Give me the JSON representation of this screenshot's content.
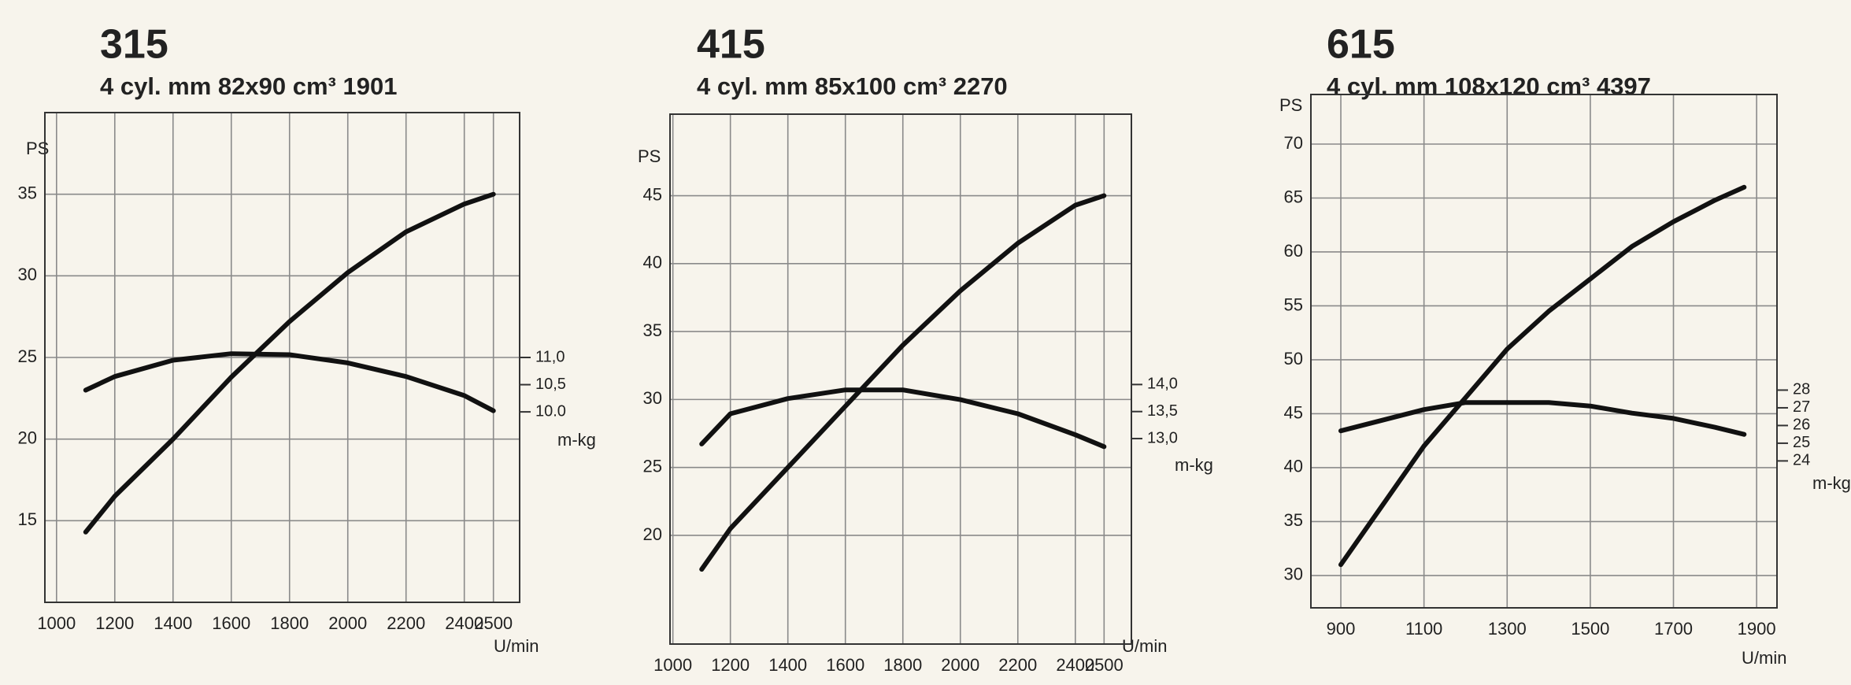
{
  "chart_data": [
    {
      "type": "line",
      "title": "315",
      "subtitle": "4 cyl.  mm 82x90  cm³ 1901",
      "y_label": "PS",
      "x_label": "U/min",
      "y2_label": "m-kg",
      "x": [
        1100,
        1200,
        1400,
        1600,
        1800,
        2000,
        2200,
        2400,
        2500
      ],
      "series": [
        {
          "color": "#111111",
          "values": [
            14.3,
            16.5,
            20,
            23.8,
            27.2,
            30.2,
            32.7,
            34.4,
            35
          ]
        },
        {
          "color": "#111111",
          "axis": "y2",
          "values": [
            10.4,
            10.65,
            10.95,
            11.07,
            11.05,
            10.9,
            10.65,
            10.3,
            10.02
          ]
        }
      ],
      "xlim": [
        960,
        2590
      ],
      "xticks": [
        1000,
        1200,
        1400,
        1600,
        1800,
        2000,
        2200,
        2400,
        2500
      ],
      "ylim": [
        10,
        40
      ],
      "yticks": [
        15,
        20,
        25,
        30,
        35
      ],
      "y2lim": [
        6.5,
        15.5
      ],
      "y2ticks": [
        {
          "value": 11,
          "label": "11,0"
        },
        {
          "value": 10.5,
          "label": "10,5"
        },
        {
          "value": 10,
          "label": "10.0"
        }
      ],
      "grid": true
    },
    {
      "type": "line",
      "title": "415",
      "subtitle": "4 cyl.  mm 85x100  cm³ 2270",
      "y_label": "PS",
      "x_label": "U/min",
      "y2_label": "m-kg",
      "x": [
        1100,
        1200,
        1400,
        1600,
        1800,
        2000,
        2200,
        2400,
        2500
      ],
      "series": [
        {
          "color": "#111111",
          "values": [
            17.5,
            20.5,
            25,
            29.5,
            34,
            38,
            41.5,
            44.3,
            45
          ]
        },
        {
          "color": "#111111",
          "axis": "y2",
          "values": [
            12.9,
            13.46,
            13.74,
            13.9,
            13.9,
            13.72,
            13.46,
            13.07,
            12.85
          ]
        }
      ],
      "xlim": [
        990,
        2595
      ],
      "xticks": [
        1000,
        1200,
        1400,
        1600,
        1800,
        2000,
        2200,
        2400,
        2500
      ],
      "ylim": [
        12,
        51
      ],
      "yticks": [
        20,
        25,
        30,
        35,
        40,
        45
      ],
      "y2lim": [
        9.2,
        19
      ],
      "y2ticks": [
        {
          "value": 14,
          "label": "14,0"
        },
        {
          "value": 13.5,
          "label": "13,5"
        },
        {
          "value": 13,
          "label": "13,0"
        }
      ],
      "grid": true
    },
    {
      "type": "line",
      "title": "615",
      "subtitle": "4 cyl.  mm 108x120  cm³ 4397",
      "y_label": "PS",
      "x_label": "U/min",
      "y2_label": "m-kg",
      "x": [
        900,
        1000,
        1100,
        1200,
        1300,
        1400,
        1500,
        1600,
        1700,
        1800,
        1870
      ],
      "series": [
        {
          "color": "#111111",
          "values": [
            31,
            36.5,
            42,
            46.5,
            51,
            54.5,
            57.5,
            60.5,
            62.8,
            64.8,
            66
          ]
        },
        {
          "color": "#111111",
          "axis": "y2",
          "values": [
            25.7,
            26.3,
            26.9,
            27.3,
            27.3,
            27.3,
            27.1,
            26.7,
            26.4,
            25.9,
            25.5
          ]
        }
      ],
      "xlim": [
        828,
        1949
      ],
      "xticks": [
        900,
        1100,
        1300,
        1500,
        1700,
        1900
      ],
      "ylim": [
        27,
        74.6
      ],
      "yticks": [
        30,
        35,
        40,
        45,
        50,
        55,
        60,
        65,
        70
      ],
      "y2lim": [
        15.7,
        44.7
      ],
      "y2ticks": [
        28,
        27,
        26,
        25,
        24
      ],
      "grid": true
    }
  ]
}
